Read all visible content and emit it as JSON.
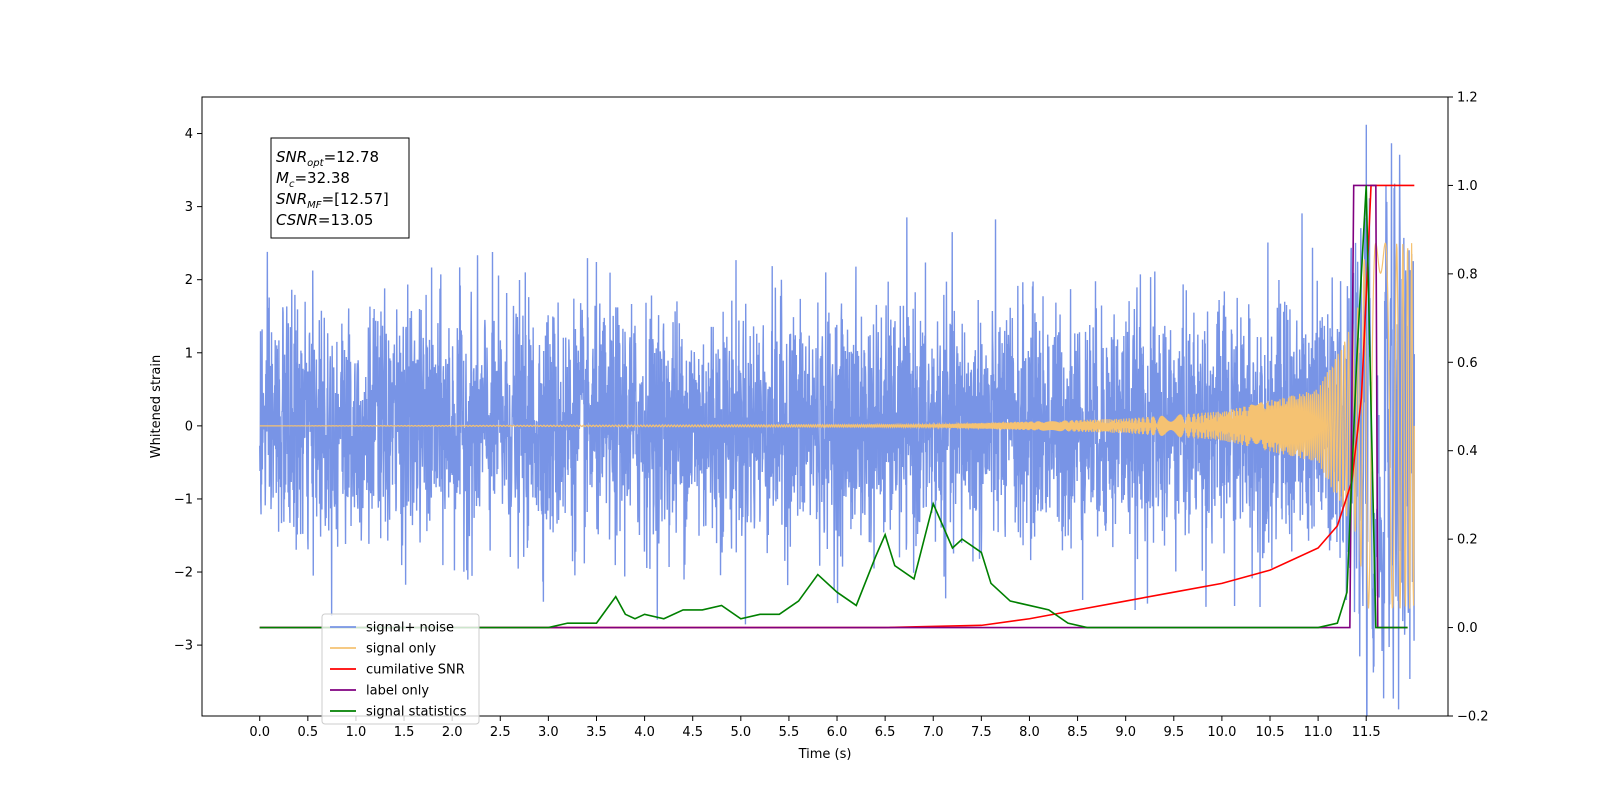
{
  "chart_data": {
    "type": "line",
    "xlabel": "Time (s)",
    "ylabel": "Whitened strain",
    "xlim": [
      -0.6,
      12.35
    ],
    "ylim": [
      -3.97,
      4.5
    ],
    "y2lim": [
      -0.2,
      1.2
    ],
    "x_ticks": [
      "0.0",
      "0.5",
      "1.0",
      "1.5",
      "2.0",
      "2.5",
      "3.0",
      "3.5",
      "4.0",
      "4.5",
      "5.0",
      "5.5",
      "6.0",
      "6.5",
      "7.0",
      "7.5",
      "8.0",
      "8.5",
      "9.0",
      "9.5",
      "10.0",
      "10.5",
      "11.0",
      "11.5"
    ],
    "y_ticks": [
      "4",
      "3",
      "2",
      "1",
      "0",
      "−1",
      "−2",
      "−3"
    ],
    "y2_ticks": [
      "1.2",
      "1.0",
      "0.8",
      "0.6",
      "0.4",
      "0.2",
      "0.0",
      "−0.2"
    ],
    "annotation": {
      "lines": [
        {
          "base": "SNR",
          "sub": "opt",
          "value": "=12.78"
        },
        {
          "base": "M",
          "sub": "c",
          "value": "=32.38"
        },
        {
          "base": "SNR",
          "sub": "MF",
          "value": "=[12.57]"
        },
        {
          "base": "CSNR",
          "sub": "",
          "value": "=13.05"
        }
      ]
    },
    "legend_position": "lower-left",
    "series": [
      {
        "name": "signal+ noise",
        "color": "#7894e6",
        "axis": "left",
        "x_range": [
          0.0,
          12.0
        ],
        "noise_sigma": 0.8,
        "peak_time": 11.5,
        "peak_value": 4.12
      },
      {
        "name": "signal only",
        "color": "#f5c272",
        "axis": "left",
        "x_range": [
          0.0,
          12.0
        ],
        "envelope_points": [
          [
            0.0,
            0.0
          ],
          [
            7.0,
            0.02
          ],
          [
            9.0,
            0.1
          ],
          [
            10.0,
            0.2
          ],
          [
            11.0,
            0.5
          ],
          [
            11.4,
            1.5
          ],
          [
            11.5,
            2.5
          ]
        ]
      },
      {
        "name": "cumilative SNR",
        "color": "#ff0000",
        "axis": "right",
        "points": [
          [
            0.0,
            0.0
          ],
          [
            6.5,
            0.0
          ],
          [
            7.5,
            0.005
          ],
          [
            8.0,
            0.02
          ],
          [
            8.5,
            0.04
          ],
          [
            9.0,
            0.06
          ],
          [
            9.5,
            0.08
          ],
          [
            10.0,
            0.1
          ],
          [
            10.5,
            0.13
          ],
          [
            11.0,
            0.18
          ],
          [
            11.2,
            0.23
          ],
          [
            11.35,
            0.33
          ],
          [
            11.45,
            0.52
          ],
          [
            11.5,
            0.75
          ],
          [
            11.55,
            1.0
          ],
          [
            12.0,
            1.0
          ]
        ]
      },
      {
        "name": "label only",
        "color": "#800080",
        "axis": "right",
        "points": [
          [
            0.0,
            0.0
          ],
          [
            11.33,
            0.0
          ],
          [
            11.37,
            1.0
          ],
          [
            11.6,
            1.0
          ],
          [
            11.62,
            0.0
          ],
          [
            11.93,
            0.0
          ]
        ]
      },
      {
        "name": "signal statistics",
        "color": "#008000",
        "axis": "right",
        "points": [
          [
            0.0,
            0.0
          ],
          [
            3.0,
            0.0
          ],
          [
            3.2,
            0.01
          ],
          [
            3.5,
            0.01
          ],
          [
            3.6,
            0.04
          ],
          [
            3.7,
            0.07
          ],
          [
            3.8,
            0.03
          ],
          [
            3.9,
            0.02
          ],
          [
            4.0,
            0.03
          ],
          [
            4.2,
            0.02
          ],
          [
            4.4,
            0.04
          ],
          [
            4.6,
            0.04
          ],
          [
            4.8,
            0.05
          ],
          [
            5.0,
            0.02
          ],
          [
            5.2,
            0.03
          ],
          [
            5.4,
            0.03
          ],
          [
            5.6,
            0.06
          ],
          [
            5.8,
            0.12
          ],
          [
            6.0,
            0.08
          ],
          [
            6.2,
            0.05
          ],
          [
            6.4,
            0.16
          ],
          [
            6.5,
            0.21
          ],
          [
            6.6,
            0.14
          ],
          [
            6.8,
            0.11
          ],
          [
            7.0,
            0.28
          ],
          [
            7.2,
            0.18
          ],
          [
            7.3,
            0.2
          ],
          [
            7.5,
            0.17
          ],
          [
            7.6,
            0.1
          ],
          [
            7.8,
            0.06
          ],
          [
            8.0,
            0.05
          ],
          [
            8.2,
            0.04
          ],
          [
            8.4,
            0.01
          ],
          [
            8.6,
            0.0
          ],
          [
            11.0,
            0.0
          ],
          [
            11.2,
            0.01
          ],
          [
            11.3,
            0.08
          ],
          [
            11.4,
            0.6
          ],
          [
            11.5,
            1.0
          ],
          [
            11.6,
            0.0
          ],
          [
            11.93,
            0.0
          ]
        ]
      }
    ]
  }
}
